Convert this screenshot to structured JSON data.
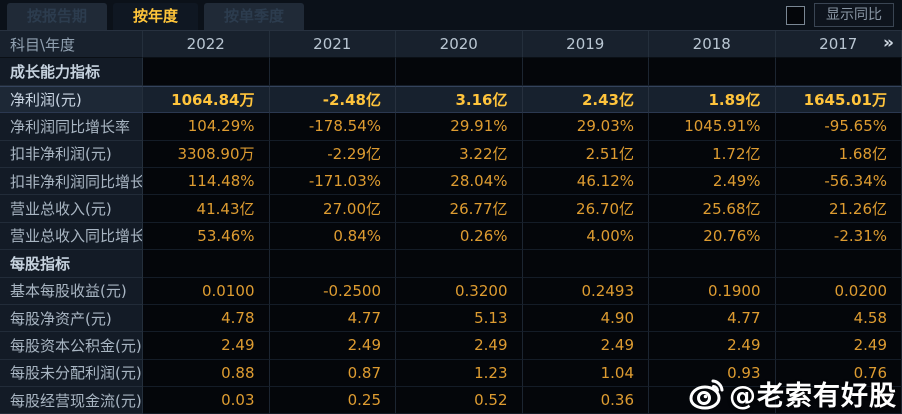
{
  "tabs": [
    {
      "label": "按报告期",
      "active": false
    },
    {
      "label": "按年度",
      "active": true
    },
    {
      "label": "按单季度",
      "active": false
    }
  ],
  "topbar": {
    "checkbox_checked": false,
    "toggle_label": "显示同比"
  },
  "table": {
    "corner_label": "科目\\年度",
    "years": [
      "2022",
      "2021",
      "2020",
      "2019",
      "2018",
      "2017"
    ],
    "more_icon": "»",
    "rows": [
      {
        "type": "section",
        "label": "成长能力指标",
        "values": [
          "",
          "",
          "",
          "",
          "",
          ""
        ]
      },
      {
        "type": "highlight",
        "label": "净利润(元)",
        "values": [
          "1064.84万",
          "-2.48亿",
          "3.16亿",
          "2.43亿",
          "1.89亿",
          "1645.01万"
        ]
      },
      {
        "type": "data",
        "label": "净利润同比增长率",
        "values": [
          "104.29%",
          "-178.54%",
          "29.91%",
          "29.03%",
          "1045.91%",
          "-95.65%"
        ]
      },
      {
        "type": "data",
        "label": "扣非净利润(元)",
        "values": [
          "3308.90万",
          "-2.29亿",
          "3.22亿",
          "2.51亿",
          "1.72亿",
          "1.68亿"
        ]
      },
      {
        "type": "data",
        "label": "扣非净利润同比增长率",
        "values": [
          "114.48%",
          "-171.03%",
          "28.04%",
          "46.12%",
          "2.49%",
          "-56.34%"
        ]
      },
      {
        "type": "data",
        "label": "营业总收入(元)",
        "values": [
          "41.43亿",
          "27.00亿",
          "26.77亿",
          "26.70亿",
          "25.68亿",
          "21.26亿"
        ]
      },
      {
        "type": "data",
        "label": "营业总收入同比增长率",
        "values": [
          "53.46%",
          "0.84%",
          "0.26%",
          "4.00%",
          "20.76%",
          "-2.31%"
        ]
      },
      {
        "type": "section",
        "label": "每股指标",
        "values": [
          "",
          "",
          "",
          "",
          "",
          ""
        ]
      },
      {
        "type": "data",
        "label": "基本每股收益(元)",
        "values": [
          "0.0100",
          "-0.2500",
          "0.3200",
          "0.2493",
          "0.1900",
          "0.0200"
        ]
      },
      {
        "type": "data",
        "label": "每股净资产(元)",
        "values": [
          "4.78",
          "4.77",
          "5.13",
          "4.90",
          "4.77",
          "4.58"
        ]
      },
      {
        "type": "data",
        "label": "每股资本公积金(元)",
        "values": [
          "2.49",
          "2.49",
          "2.49",
          "2.49",
          "2.49",
          "2.49"
        ]
      },
      {
        "type": "data",
        "label": "每股未分配利润(元)",
        "values": [
          "0.88",
          "0.87",
          "1.23",
          "1.04",
          "0.93",
          "0.76"
        ]
      },
      {
        "type": "data",
        "label": "每股经营现金流(元)",
        "values": [
          "0.03",
          "0.25",
          "0.52",
          "0.36",
          "",
          ""
        ]
      }
    ]
  },
  "watermark": {
    "handle": "@老索有好股",
    "icon": "weibo-icon"
  },
  "colors": {
    "value_gold": "#de9c31",
    "highlight_gold": "#ffc43c",
    "active_tab_gold": "#ffc53a",
    "label_text": "#a9b6c3",
    "row_highlight_bg": "#17212e",
    "panel_bg": "#131b26",
    "cell_bg": "#04060a"
  }
}
